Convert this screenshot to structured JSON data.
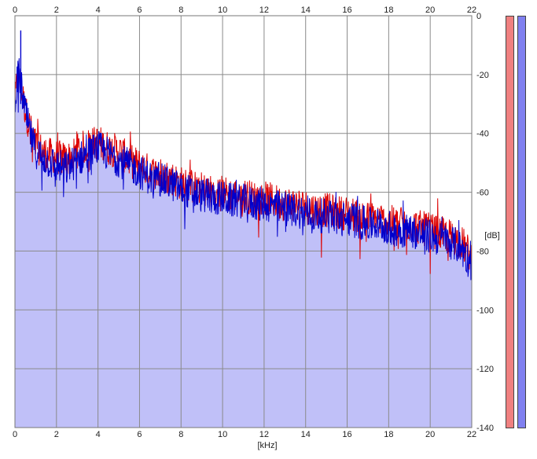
{
  "chart_data": {
    "type": "area",
    "xlabel": "[kHz]",
    "ylabel": "[dB]",
    "xlim": [
      0,
      22
    ],
    "ylim": [
      -140,
      0
    ],
    "x_ticks": [
      "0",
      "2",
      "4",
      "6",
      "8",
      "10",
      "12",
      "14",
      "16",
      "18",
      "20",
      "22"
    ],
    "y_ticks": [
      "0",
      "-20",
      "-40",
      "-60",
      "-80",
      "-100",
      "-120",
      "-140"
    ],
    "grid": true,
    "series": [
      {
        "channel": "left",
        "color": "#dd0000",
        "x": [
          0,
          0.1,
          0.2,
          0.3,
          0.5,
          0.8,
          1,
          1.5,
          2,
          2.5,
          3,
          3.5,
          4,
          4.5,
          5,
          5.5,
          6,
          6.5,
          7,
          7.5,
          8,
          8.5,
          9,
          9.5,
          10,
          10.5,
          11,
          11.5,
          12,
          12.5,
          13,
          13.5,
          14,
          14.5,
          15,
          15.5,
          16,
          16.5,
          17,
          17.5,
          18,
          18.5,
          19,
          19.5,
          20,
          20.5,
          21,
          21.5,
          22
        ],
        "values": [
          -30,
          -22,
          -20,
          -25,
          -32,
          -40,
          -44,
          -47,
          -48,
          -49,
          -46,
          -44,
          -43,
          -45,
          -46,
          -49,
          -51,
          -53,
          -54,
          -55,
          -57,
          -58,
          -59,
          -60,
          -60,
          -61,
          -61,
          -62,
          -62,
          -63,
          -64,
          -64,
          -65,
          -66,
          -66,
          -67,
          -67,
          -68,
          -69,
          -69,
          -70,
          -71,
          -71,
          -72,
          -73,
          -74,
          -75,
          -77,
          -82
        ]
      },
      {
        "channel": "right",
        "color": "#0000cc",
        "x": [
          0,
          0.1,
          0.2,
          0.3,
          0.5,
          0.8,
          1,
          1.5,
          2,
          2.5,
          3,
          3.5,
          4,
          4.5,
          5,
          5.5,
          6,
          6.5,
          7,
          7.5,
          8,
          8.5,
          9,
          9.5,
          10,
          10.5,
          11,
          11.5,
          12,
          12.5,
          13,
          13.5,
          14,
          14.5,
          15,
          15.5,
          16,
          16.5,
          17,
          17.5,
          18,
          18.5,
          19,
          19.5,
          20,
          20.5,
          21,
          21.5,
          22
        ],
        "values": [
          -28,
          -22,
          -20,
          -24,
          -33,
          -42,
          -46,
          -49,
          -51,
          -52,
          -49,
          -47,
          -45,
          -47,
          -49,
          -51,
          -53,
          -55,
          -56,
          -57,
          -59,
          -60,
          -61,
          -62,
          -62,
          -63,
          -63,
          -64,
          -64,
          -65,
          -66,
          -66,
          -67,
          -68,
          -68,
          -69,
          -69,
          -70,
          -71,
          -71,
          -72,
          -73,
          -73,
          -74,
          -75,
          -76,
          -77,
          -79,
          -85
        ]
      }
    ],
    "fill_color": "#c0c0f8",
    "peak_marker": {
      "x": 0.28,
      "value": -5
    }
  },
  "meters": [
    {
      "channel": "left",
      "color": "#f08080"
    },
    {
      "channel": "right",
      "color": "#8080f0"
    }
  ]
}
